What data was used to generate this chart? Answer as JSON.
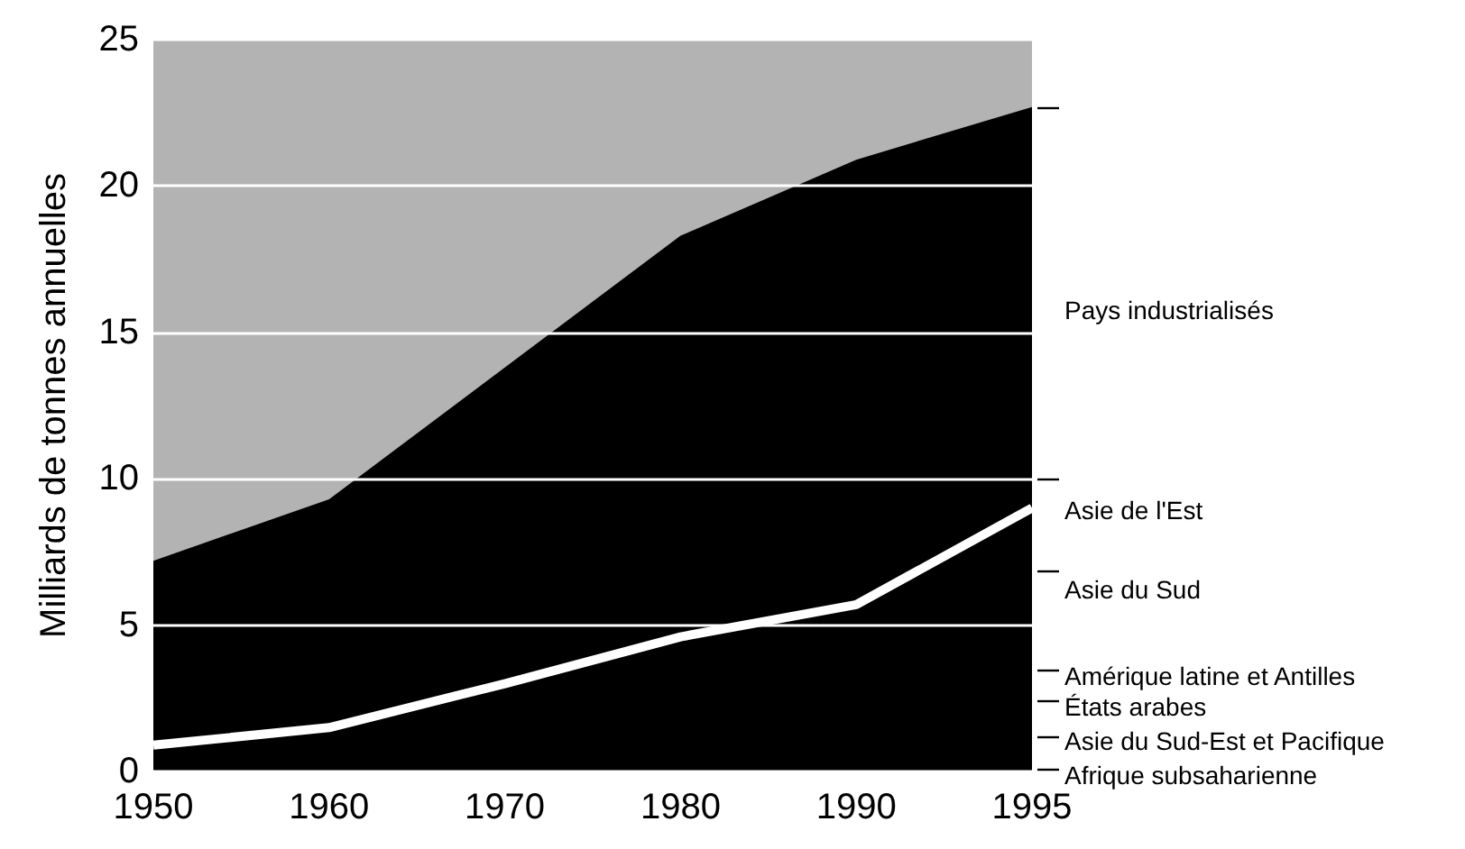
{
  "chart_data": {
    "type": "area",
    "ylabel": "Milliards de tonnes annuelles",
    "categories": [
      "1950",
      "1960",
      "1970",
      "1980",
      "1990",
      "1995"
    ],
    "series": [
      {
        "color": "#000000",
        "values": [
          7.2,
          9.3,
          13.8,
          18.3,
          20.9,
          22.7
        ]
      },
      {
        "type": "line",
        "color": "#ffffff",
        "values": [
          0.9,
          1.5,
          3.0,
          4.6,
          5.7,
          9.0
        ]
      }
    ],
    "ylim": [
      0,
      25
    ],
    "yticks": [
      0,
      5,
      10,
      15,
      20,
      25
    ],
    "annotations": [
      "Pays industrialisés",
      "Asie de l'Est",
      "Asie du Sud",
      "Amérique latine et Antilles",
      "États arabes",
      "Asie du Sud-Est et Pacifique",
      "Afrique subsaharienne"
    ],
    "grid": "y",
    "marker": "none"
  }
}
